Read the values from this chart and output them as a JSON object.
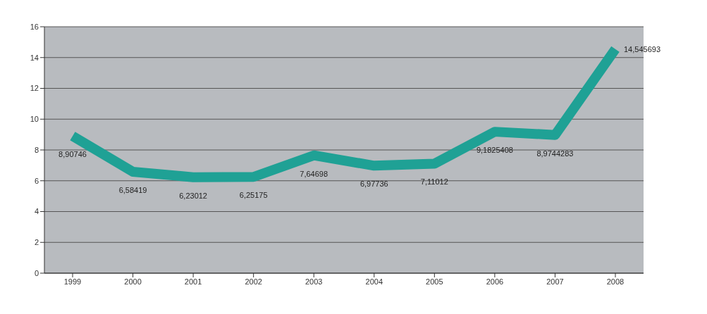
{
  "chart_data": {
    "type": "line",
    "categories": [
      "1999",
      "2000",
      "2001",
      "2002",
      "2003",
      "2004",
      "2005",
      "2006",
      "2007",
      "2008"
    ],
    "series": [
      {
        "color": "#1fa195",
        "values": [
          8.90746,
          6.58419,
          6.23012,
          6.25175,
          7.64698,
          6.97736,
          7.11012,
          9.1825408,
          8.9744283,
          14.545693
        ],
        "value_labels": [
          "8,90746",
          "6,58419",
          "6,23012",
          "6,25175",
          "7,64698",
          "6,97736",
          "7,11012",
          "9,1825408",
          "8,9744283",
          "14,545693"
        ]
      }
    ],
    "ylim": [
      0,
      16
    ],
    "yticks": [
      0,
      2,
      4,
      6,
      8,
      10,
      12,
      14,
      16
    ],
    "grid": "y",
    "marker": "none",
    "line_style": "solid"
  }
}
